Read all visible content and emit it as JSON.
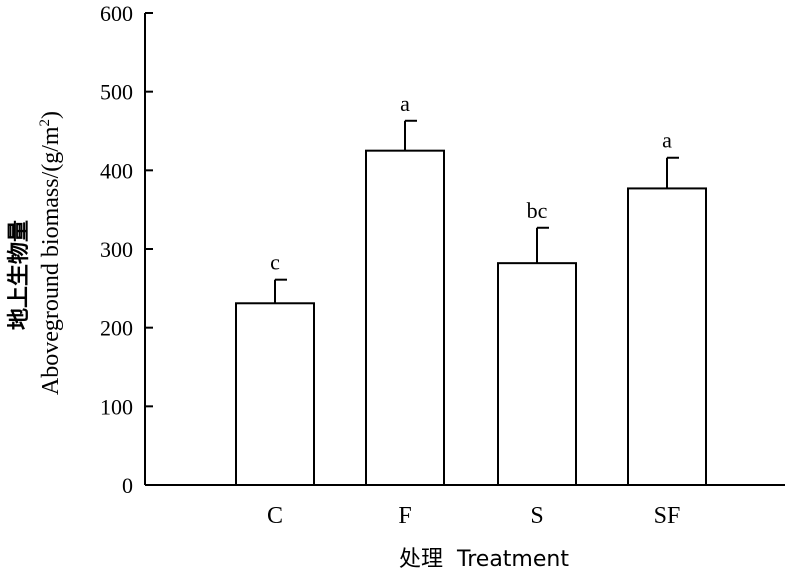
{
  "chart_data": {
    "type": "bar",
    "categories": [
      "C",
      "F",
      "S",
      "SF"
    ],
    "values": [
      231,
      425,
      282,
      377
    ],
    "errors": [
      30,
      38,
      45,
      39
    ],
    "significance": [
      "c",
      "a",
      "bc",
      "a"
    ],
    "ylabel_cn": "地上生物量",
    "ylabel_en": "Aboveground biomass/(g/m",
    "ylabel_sup": "2",
    "ylabel_close": ")",
    "xlabel": "处理  Treatment",
    "ylim": [
      0,
      600
    ],
    "yticks": [
      "0",
      "100",
      "200",
      "300",
      "400",
      "500",
      "600"
    ],
    "grid": false,
    "bar_fill": "#ffffff",
    "bar_stroke": "#000000"
  }
}
